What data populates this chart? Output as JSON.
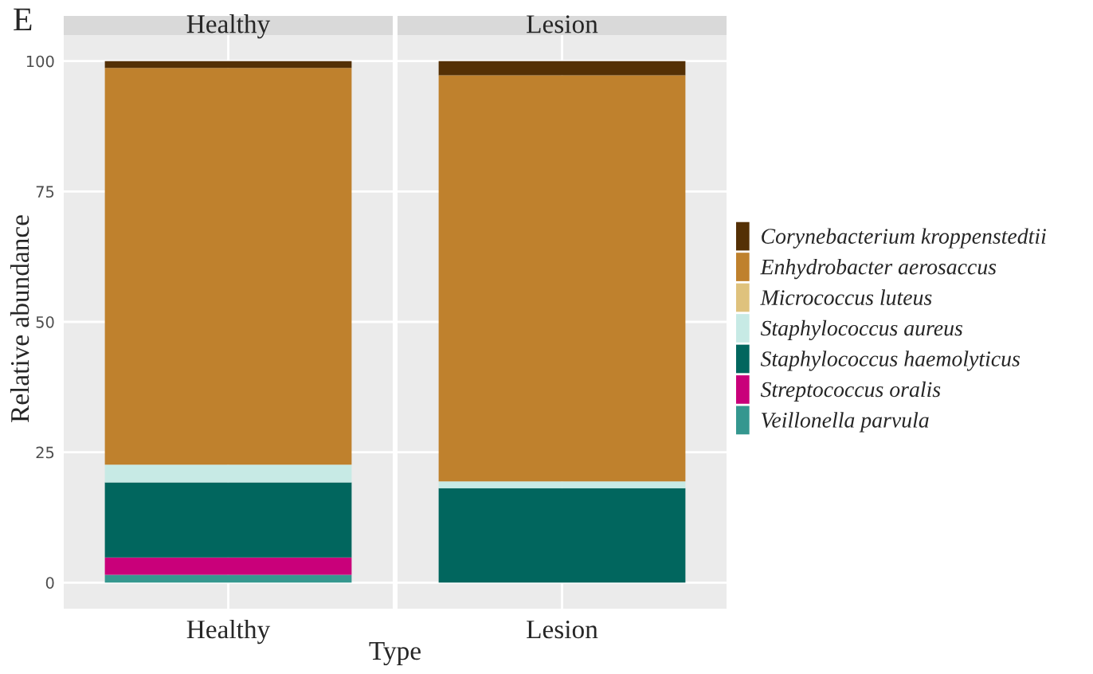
{
  "chart_data": {
    "type": "bar",
    "ylabel": "Relative abundance",
    "xlabel": "Type",
    "annotations": [
      "E"
    ],
    "categories": [
      "Healthy",
      "Lesion"
    ],
    "stacked": true,
    "ylim": [
      -5,
      105
    ],
    "yticks": [
      0,
      25,
      50,
      75,
      100
    ],
    "grid": true,
    "legend": "right",
    "series": [
      {
        "name": "Veillonella parvula",
        "color": "#35978f",
        "values": [
          1.5,
          0
        ]
      },
      {
        "name": "Streptococcus oralis",
        "color": "#c9007a",
        "values": [
          3.3,
          0
        ]
      },
      {
        "name": "Staphylococcus haemolyticus",
        "color": "#01665e",
        "values": [
          14.4,
          18.1
        ]
      },
      {
        "name": "Staphylococcus aureus",
        "color": "#c7eae5",
        "values": [
          3.4,
          1.3
        ]
      },
      {
        "name": "Micrococcus luteus",
        "color": "#dfc27d",
        "values": [
          0,
          0
        ]
      },
      {
        "name": "Enhydrobacter aerosaccus",
        "color": "#bf812d",
        "values": [
          76.1,
          77.9
        ]
      },
      {
        "name": "Corynebacterium kroppenstedtii",
        "color": "#543005",
        "values": [
          1.3,
          2.7
        ]
      }
    ]
  }
}
